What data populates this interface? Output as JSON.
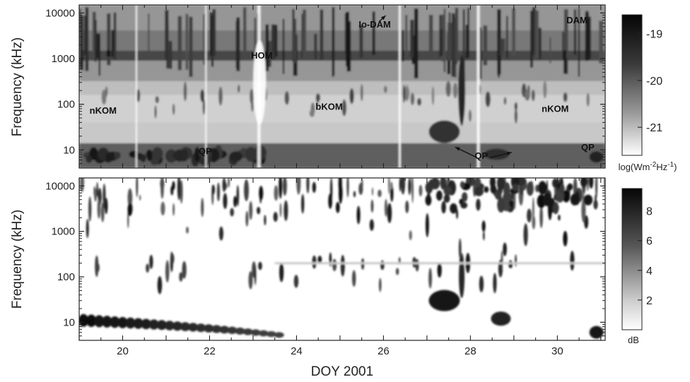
{
  "chart_data": [
    {
      "type": "heatmap",
      "panel": "top",
      "ylabel": "Frequency (kHz)",
      "xlabel": "",
      "yscale": "log",
      "ylim": [
        4,
        15000
      ],
      "xlim": [
        19.0,
        31.1
      ],
      "yticks": [
        10,
        100,
        1000,
        10000
      ],
      "ytick_labels": [
        "10",
        "100",
        "1000",
        "10000"
      ],
      "colorscale": "gray_reversed",
      "colorbar": {
        "range": [
          -21.6,
          -18.6
        ],
        "ticks": [
          -19,
          -20,
          -21
        ],
        "tick_labels": [
          "-19",
          "-20",
          "-21"
        ],
        "unit_base": "log(Wm",
        "unit_exp1": "-2",
        "unit_mid": "Hz",
        "unit_exp2": "-1",
        "unit_end": ")"
      },
      "annotations": [
        {
          "text": "Io-DAM",
          "x": 25.8,
          "y": 4800
        },
        {
          "text": "DAM",
          "x": 30.45,
          "y": 5900
        },
        {
          "text": "HOM",
          "x": 23.2,
          "y": 1000
        },
        {
          "text": "nKOM",
          "x": 19.55,
          "y": 62
        },
        {
          "text": "bKOM",
          "x": 24.75,
          "y": 76
        },
        {
          "text": "nKOM",
          "x": 29.95,
          "y": 68
        },
        {
          "text": "QP",
          "x": 21.9,
          "y": 8
        },
        {
          "text": "QP",
          "x": 28.25,
          "y": 6.4
        },
        {
          "text": "QP",
          "x": 30.7,
          "y": 9.8
        }
      ]
    },
    {
      "type": "heatmap",
      "panel": "bottom",
      "ylabel": "Frequency (kHz)",
      "xlabel": "DOY 2001",
      "yscale": "log",
      "ylim": [
        4,
        15000
      ],
      "xlim": [
        19.0,
        31.1
      ],
      "xticks": [
        20,
        22,
        24,
        26,
        28,
        30
      ],
      "xtick_labels": [
        "20",
        "22",
        "24",
        "26",
        "28",
        "30"
      ],
      "yticks": [
        10,
        100,
        1000,
        10000
      ],
      "ytick_labels": [
        "10",
        "100",
        "1000",
        "10000"
      ],
      "colorscale": "gray_reversed",
      "colorbar": {
        "range": [
          0,
          9.5
        ],
        "ticks": [
          8,
          6,
          4,
          2
        ],
        "tick_labels": [
          "8",
          "6",
          "4",
          "2"
        ],
        "unit": "dB"
      }
    }
  ]
}
